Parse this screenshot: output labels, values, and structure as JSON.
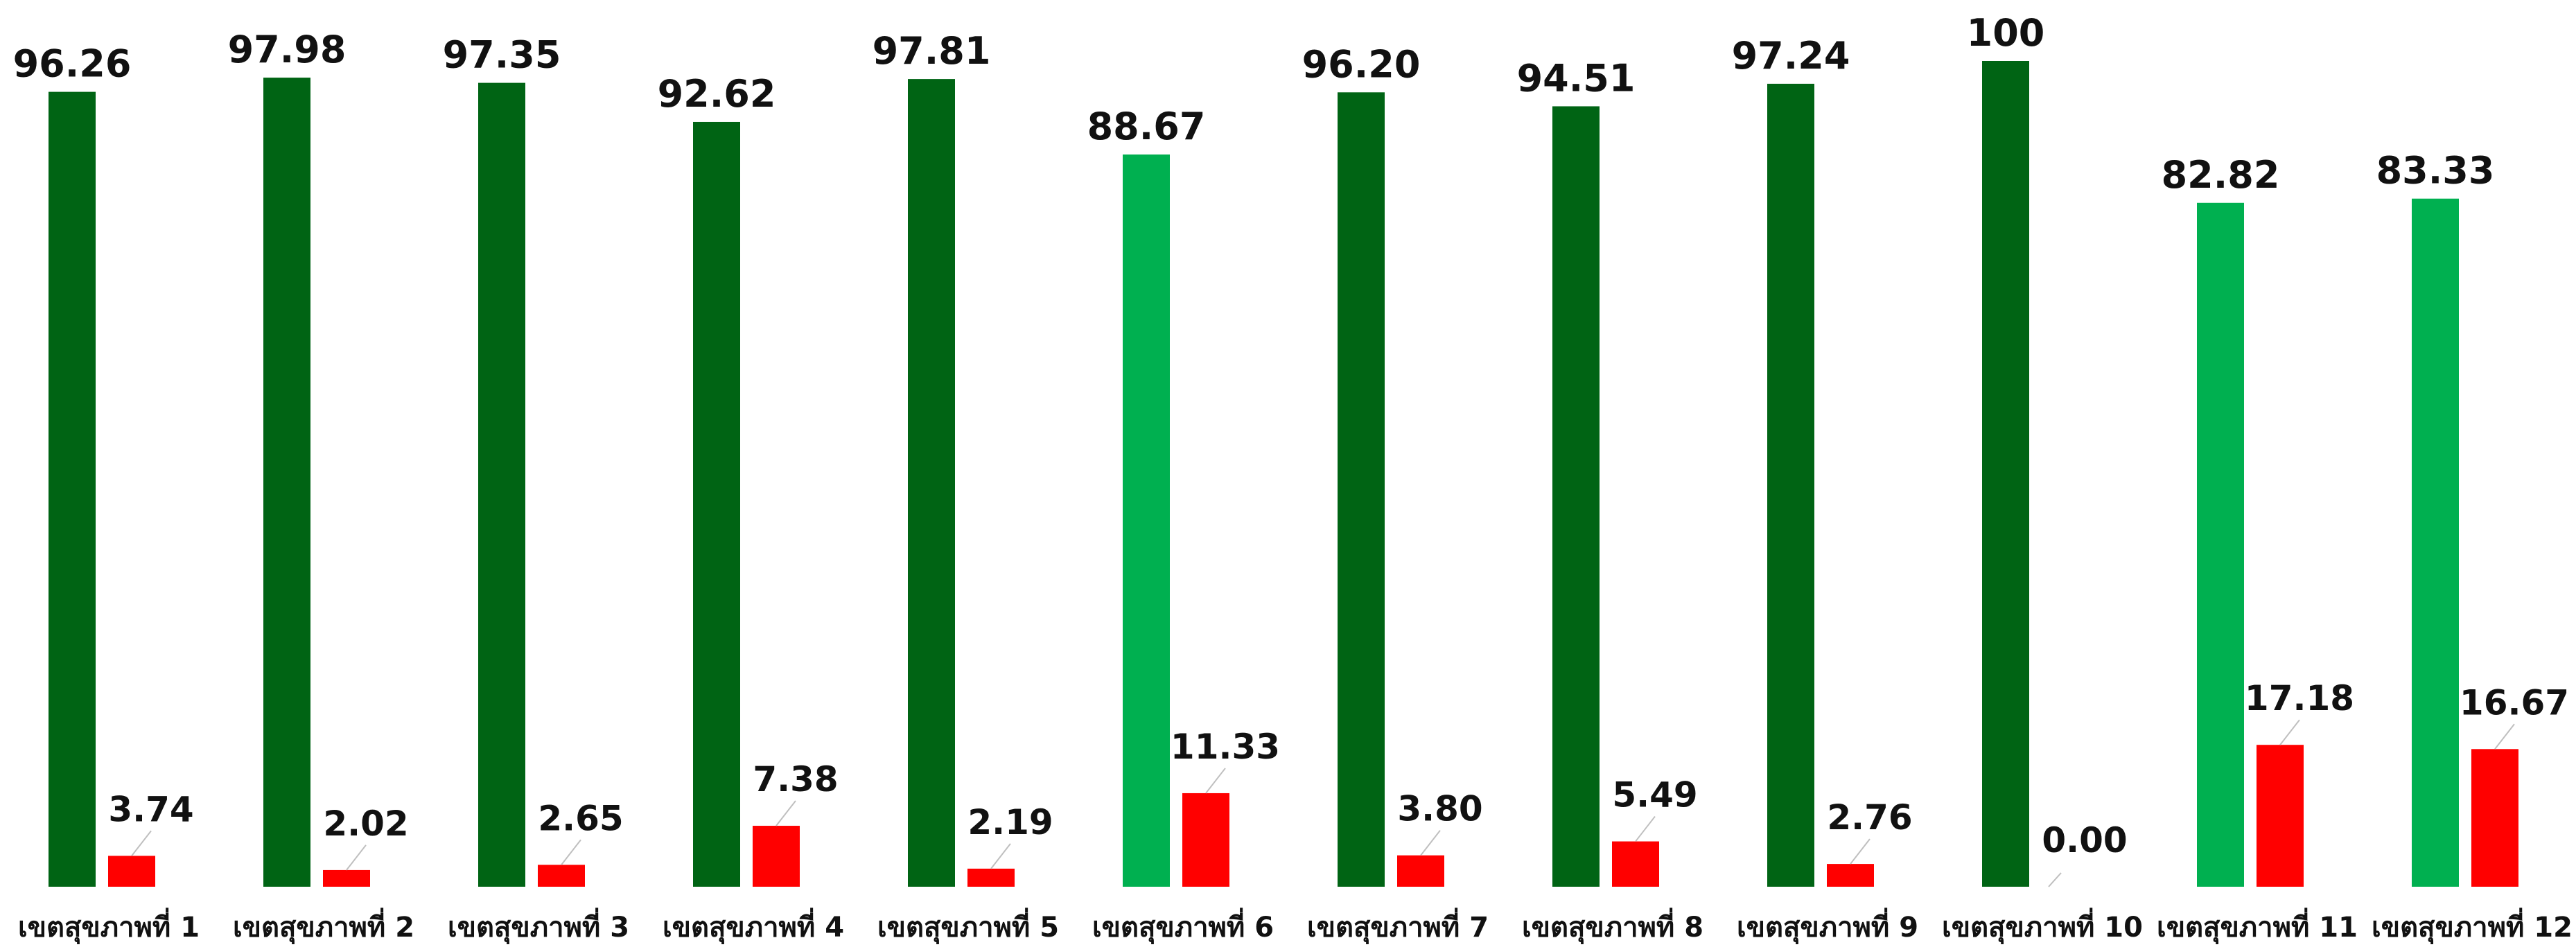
{
  "chart_data": {
    "type": "bar",
    "title": "",
    "xlabel": "",
    "ylabel": "",
    "ylim": [
      0,
      100
    ],
    "grid": false,
    "legend": "none",
    "categories": [
      "เขตสุขภาพที่ 1",
      "เขตสุขภาพที่ 2",
      "เขตสุขภาพที่ 3",
      "เขตสุขภาพที่ 4",
      "เขตสุขภาพที่ 5",
      "เขตสุขภาพที่ 6",
      "เขตสุขภาพที่ 7",
      "เขตสุขภาพที่ 8",
      "เขตสุขภาพที่ 9",
      "เขตสุขภาพที่ 10",
      "เขตสุขภาพที่ 11",
      "เขตสุขภาพที่ 12"
    ],
    "series": [
      {
        "values": [
          96.26,
          97.98,
          97.35,
          92.62,
          97.81,
          88.67,
          96.2,
          94.51,
          97.24,
          100,
          82.82,
          83.33
        ],
        "labels": [
          "96.26",
          "97.98",
          "97.35",
          "92.62",
          "97.81",
          "88.67",
          "96.20",
          "94.51",
          "97.24",
          "100",
          "82.82",
          "83.33"
        ],
        "colors": [
          "#006414",
          "#006414",
          "#006414",
          "#006414",
          "#006414",
          "#00b050",
          "#006414",
          "#006414",
          "#006414",
          "#006414",
          "#00b050",
          "#00b050"
        ]
      },
      {
        "values": [
          3.74,
          2.02,
          2.65,
          7.38,
          2.19,
          11.33,
          3.8,
          5.49,
          2.76,
          0.0,
          17.18,
          16.67
        ],
        "labels": [
          "3.74",
          "2.02",
          "2.65",
          "7.38",
          "2.19",
          "11.33",
          "3.80",
          "5.49",
          "2.76",
          "0.00",
          "17.18",
          "16.67"
        ],
        "colors": [
          "#ff0000",
          "#ff0000",
          "#ff0000",
          "#ff0000",
          "#ff0000",
          "#ff0000",
          "#ff0000",
          "#ff0000",
          "#ff0000",
          "#ff0000",
          "#ff0000",
          "#ff0000"
        ]
      }
    ]
  }
}
